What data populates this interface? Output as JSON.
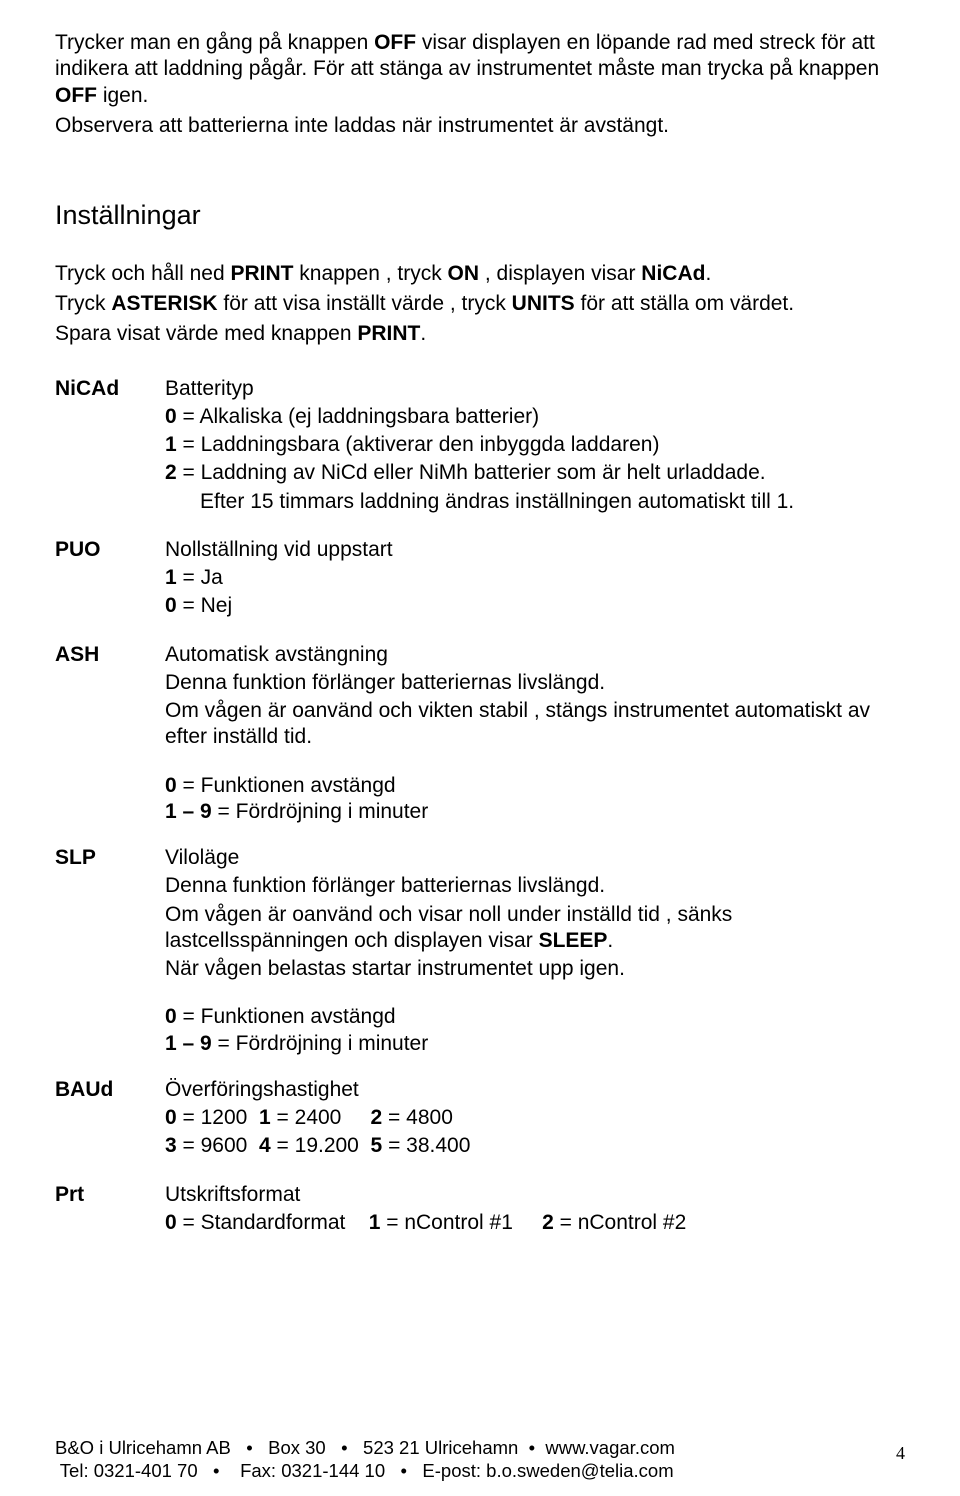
{
  "intro": {
    "p1a": "Trycker man en gång på knappen ",
    "off1": "OFF",
    "p1b": " visar displayen en löpande rad med streck för att indikera att laddning pågår. För att stänga av instrumentet måste man trycka på knappen ",
    "off2": "OFF",
    "p1c": " igen.",
    "p2": "Observera att batterierna inte laddas när instrumentet är avstängt."
  },
  "settingsHeading": "Inställningar",
  "settingsIntro": {
    "l1a": "Tryck och håll ned ",
    "print": "PRINT",
    "l1b": " knappen , tryck ",
    "on": "ON",
    "l1c": " , displayen visar ",
    "nicad": "NiCAd",
    "l1d": ".",
    "l2a": "Tryck ",
    "asterisk": "ASTERISK",
    "l2b": " för att visa inställt värde , tryck ",
    "units": "UNITS",
    "l2c": " för att ställa om värdet.",
    "l3a": "Spara visat värde med knappen ",
    "print2": "PRINT",
    "l3b": "."
  },
  "nicad": {
    "key": "NiCAd",
    "title": "Batterityp",
    "l0a": "0",
    "l0b": " = Alkaliska  (ej laddningsbara batterier)",
    "l1a": "1",
    "l1b": " = Laddningsbara  (aktiverar den inbyggda laddaren)",
    "l2a": "2",
    "l2b": " = Laddning av NiCd eller NiMh batterier som är helt urladdade.",
    "l3": "      Efter 15 timmars laddning ändras inställningen automatiskt till 1."
  },
  "puo": {
    "key": "PUO",
    "title": "Nollställning vid uppstart",
    "l1a": "1",
    "l1b": " = Ja",
    "l0a": "0",
    "l0b": " = Nej"
  },
  "ash": {
    "key": "ASH",
    "title": "Automatisk avstängning",
    "l1": "Denna funktion förlänger batteriernas livslängd.",
    "l2": "Om vågen är oanvänd och vikten stabil , stängs instrumentet automatiskt av efter inställd tid.",
    "s0a": "0",
    "s0b": " = Funktionen avstängd",
    "s1a": "1 – 9",
    "s1b": " = Fördröjning i minuter"
  },
  "slp": {
    "key": "SLP",
    "title": "Viloläge",
    "l1": "Denna funktion förlänger batteriernas livslängd.",
    "l2a": "Om vågen är oanvänd och visar noll under inställd tid , sänks lastcellsspänningen och displayen visar ",
    "sleep": "SLEEP",
    "l2b": ".",
    "l3": "När vågen belastas startar instrumentet upp igen.",
    "s0a": "0",
    "s0b": " = Funktionen avstängd",
    "s1a": "1 – 9",
    "s1b": " = Fördröjning i minuter"
  },
  "baud": {
    "key": "BAUd",
    "title": "Överföringshastighet",
    "c0a": "0",
    "c0b": " = 1200  ",
    "c1a": "1",
    "c1b": " = 2400     ",
    "c2a": "2",
    "c2b": " = 4800",
    "c3a": "3",
    "c3b": " = 9600  ",
    "c4a": "4",
    "c4b": " = 19.200  ",
    "c5a": "5",
    "c5b": " = 38.400"
  },
  "prt": {
    "key": "Prt",
    "title": "Utskriftsformat",
    "c0a": "0",
    "c0b": " = Standardformat    ",
    "c1a": "1",
    "c1b": " = nControl #1     ",
    "c2a": "2",
    "c2b": " = nControl #2"
  },
  "footer": {
    "l1": "B&O i Ulricehamn AB   •   Box 30   •   523 21 Ulricehamn  •  www.vagar.com",
    "l2": " Tel: 0321-401 70   •    Fax: 0321-144 10   •   E-post: b.o.sweden@telia.com",
    "page": "4"
  }
}
